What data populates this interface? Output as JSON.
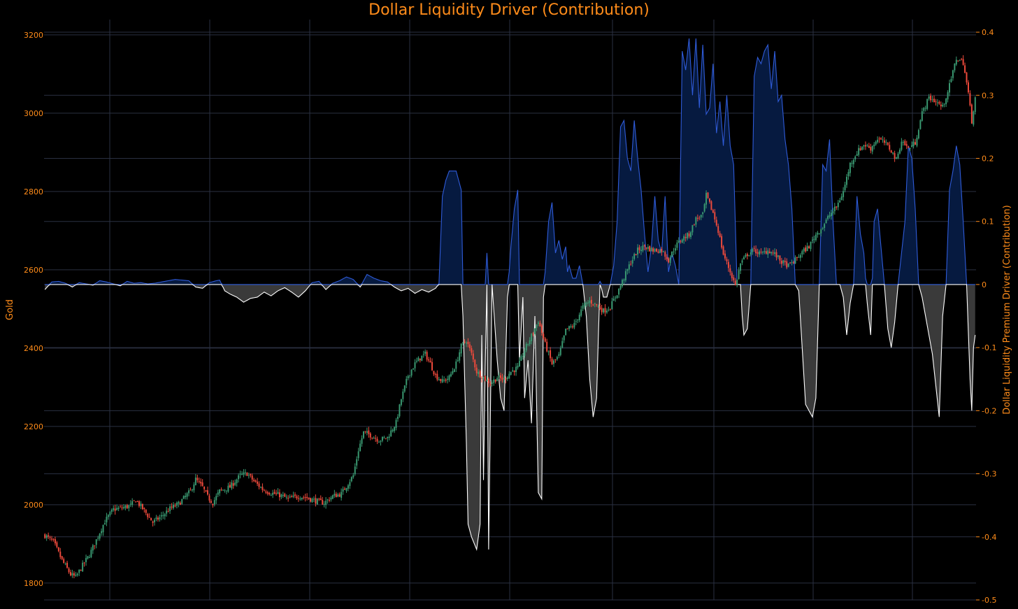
{
  "chart_data": {
    "type": "candlestick+area",
    "title": "Dollar Liquidity Driver (Contribution)",
    "y_left": {
      "label": "Gold",
      "range": [
        1757,
        3239
      ],
      "ticks": [
        1800,
        2000,
        2200,
        2400,
        2600,
        2800,
        3000,
        3200
      ]
    },
    "y_right": {
      "label": "Dollar Liquidity Premium Driver (Contribution)",
      "range": [
        -0.5,
        0.42
      ],
      "ticks": [
        -0.5,
        -0.4,
        -0.3,
        -0.2,
        -0.1,
        0,
        0.1,
        0.2,
        0.3,
        0.4
      ],
      "tick_labels": [
        "-0.5",
        "-0.4",
        "-0.3",
        "-0.2",
        "-0.1",
        "0",
        "0.1",
        "0.2",
        "0.3",
        "0.4"
      ]
    },
    "x_points": 330,
    "gold_close": [
      [
        0,
        1922
      ],
      [
        5,
        1905
      ],
      [
        10,
        1858
      ],
      [
        15,
        1822
      ],
      [
        18,
        1815
      ],
      [
        22,
        1845
      ],
      [
        26,
        1872
      ],
      [
        30,
        1910
      ],
      [
        35,
        1958
      ],
      [
        40,
        1988
      ],
      [
        45,
        1992
      ],
      [
        50,
        1998
      ],
      [
        53,
        2012
      ],
      [
        58,
        1985
      ],
      [
        63,
        1955
      ],
      [
        68,
        1970
      ],
      [
        73,
        1990
      ],
      [
        78,
        2002
      ],
      [
        85,
        2035
      ],
      [
        88,
        2065
      ],
      [
        92,
        2045
      ],
      [
        95,
        2020
      ],
      [
        98,
        2005
      ],
      [
        102,
        2035
      ],
      [
        108,
        2045
      ],
      [
        114,
        2075
      ],
      [
        118,
        2080
      ],
      [
        122,
        2060
      ],
      [
        127,
        2040
      ],
      [
        132,
        2030
      ],
      [
        137,
        2025
      ],
      [
        142,
        2015
      ],
      [
        148,
        2022
      ],
      [
        153,
        2018
      ],
      [
        158,
        2010
      ],
      [
        163,
        2005
      ],
      [
        168,
        2022
      ],
      [
        173,
        2028
      ],
      [
        176,
        2048
      ],
      [
        180,
        2075
      ],
      [
        183,
        2140
      ],
      [
        186,
        2185
      ],
      [
        190,
        2178
      ],
      [
        195,
        2165
      ],
      [
        200,
        2172
      ],
      [
        205,
        2210
      ],
      [
        208,
        2270
      ],
      [
        212,
        2330
      ],
      [
        216,
        2360
      ],
      [
        219,
        2375
      ],
      [
        222,
        2385
      ],
      [
        225,
        2360
      ],
      [
        228,
        2330
      ],
      [
        232,
        2315
      ],
      [
        236,
        2325
      ],
      [
        240,
        2360
      ],
      [
        243,
        2405
      ],
      [
        246,
        2420
      ],
      [
        249,
        2385
      ],
      [
        252,
        2340
      ],
      [
        256,
        2325
      ],
      [
        260,
        2310
      ],
      [
        264,
        2325
      ],
      [
        268,
        2320
      ],
      [
        272,
        2340
      ],
      [
        276,
        2350
      ],
      [
        280,
        2395
      ],
      [
        285,
        2440
      ],
      [
        288,
        2470
      ],
      [
        292,
        2410
      ],
      [
        296,
        2360
      ],
      [
        300,
        2380
      ],
      [
        304,
        2445
      ],
      [
        309,
        2460
      ],
      [
        314,
        2505
      ],
      [
        318,
        2520
      ],
      [
        322,
        2510
      ],
      [
        326,
        2495
      ],
      [
        330,
        2505
      ],
      [
        334,
        2540
      ],
      [
        338,
        2580
      ],
      [
        342,
        2620
      ],
      [
        346,
        2650
      ],
      [
        350,
        2660
      ],
      [
        355,
        2650
      ],
      [
        360,
        2650
      ],
      [
        364,
        2625
      ],
      [
        368,
        2660
      ],
      [
        372,
        2680
      ],
      [
        376,
        2690
      ],
      [
        380,
        2730
      ],
      [
        384,
        2740
      ],
      [
        386,
        2790
      ],
      [
        390,
        2745
      ],
      [
        393,
        2700
      ],
      [
        396,
        2640
      ],
      [
        400,
        2595
      ],
      [
        403,
        2560
      ],
      [
        406,
        2615
      ],
      [
        410,
        2640
      ],
      [
        414,
        2650
      ],
      [
        418,
        2640
      ],
      [
        422,
        2650
      ],
      [
        426,
        2640
      ],
      [
        430,
        2620
      ],
      [
        434,
        2610
      ],
      [
        438,
        2625
      ],
      [
        442,
        2645
      ],
      [
        446,
        2660
      ],
      [
        450,
        2690
      ],
      [
        454,
        2710
      ],
      [
        458,
        2740
      ],
      [
        462,
        2760
      ],
      [
        466,
        2800
      ],
      [
        470,
        2870
      ],
      [
        474,
        2900
      ],
      [
        478,
        2920
      ],
      [
        482,
        2910
      ],
      [
        486,
        2935
      ],
      [
        490,
        2925
      ],
      [
        494,
        2905
      ],
      [
        497,
        2880
      ],
      [
        500,
        2930
      ],
      [
        504,
        2910
      ],
      [
        508,
        2925
      ],
      [
        512,
        3000
      ],
      [
        516,
        3040
      ],
      [
        520,
        3030
      ],
      [
        524,
        3015
      ],
      [
        528,
        3070
      ],
      [
        532,
        3140
      ],
      [
        536,
        3130
      ],
      [
        539,
        3050
      ],
      [
        541,
        2980
      ],
      [
        543,
        3040
      ]
    ],
    "liquidity_contribution": [
      [
        0,
        -0.008
      ],
      [
        4,
        0.004
      ],
      [
        8,
        0.005
      ],
      [
        12,
        0.002
      ],
      [
        16,
        -0.004
      ],
      [
        20,
        0.003
      ],
      [
        24,
        0.001
      ],
      [
        28,
        -0.001
      ],
      [
        32,
        0.006
      ],
      [
        36,
        0.004
      ],
      [
        40,
        0.001
      ],
      [
        44,
        -0.002
      ],
      [
        48,
        0.005
      ],
      [
        52,
        0.002
      ],
      [
        56,
        0.003
      ],
      [
        60,
        0.001
      ],
      [
        64,
        0.002
      ],
      [
        68,
        0.004
      ],
      [
        72,
        0.006
      ],
      [
        76,
        0.008
      ],
      [
        80,
        0.007
      ],
      [
        84,
        0.006
      ],
      [
        88,
        -0.004
      ],
      [
        92,
        -0.006
      ],
      [
        96,
        0.003
      ],
      [
        100,
        0.006
      ],
      [
        102,
        0.007
      ],
      [
        105,
        -0.01
      ],
      [
        108,
        -0.015
      ],
      [
        112,
        -0.02
      ],
      [
        116,
        -0.028
      ],
      [
        120,
        -0.022
      ],
      [
        124,
        -0.02
      ],
      [
        128,
        -0.012
      ],
      [
        132,
        -0.018
      ],
      [
        136,
        -0.01
      ],
      [
        140,
        -0.005
      ],
      [
        144,
        -0.012
      ],
      [
        148,
        -0.02
      ],
      [
        152,
        -0.01
      ],
      [
        156,
        0.003
      ],
      [
        160,
        0.005
      ],
      [
        164,
        -0.008
      ],
      [
        168,
        0.002
      ],
      [
        172,
        0.006
      ],
      [
        176,
        0.012
      ],
      [
        180,
        0.008
      ],
      [
        184,
        -0.004
      ],
      [
        188,
        0.016
      ],
      [
        192,
        0.01
      ],
      [
        196,
        0.006
      ],
      [
        200,
        0.004
      ],
      [
        204,
        -0.004
      ],
      [
        208,
        -0.01
      ],
      [
        212,
        -0.006
      ],
      [
        216,
        -0.014
      ],
      [
        220,
        -0.008
      ],
      [
        224,
        -0.012
      ],
      [
        228,
        -0.006
      ],
      [
        230,
        0.001
      ],
      [
        232,
        0.14
      ],
      [
        234,
        0.165
      ],
      [
        236,
        0.18
      ],
      [
        240,
        0.18
      ],
      [
        243,
        0.15
      ],
      [
        244,
        -0.05
      ],
      [
        246,
        -0.25
      ],
      [
        247,
        -0.38
      ],
      [
        249,
        -0.4
      ],
      [
        252,
        -0.42
      ],
      [
        254,
        -0.38
      ],
      [
        255,
        -0.08
      ],
      [
        256,
        -0.31
      ],
      [
        258,
        0.05
      ],
      [
        259,
        -0.42
      ],
      [
        261,
        0.0
      ],
      [
        262,
        -0.04
      ],
      [
        264,
        -0.12
      ],
      [
        266,
        -0.18
      ],
      [
        268,
        -0.2
      ],
      [
        270,
        -0.02
      ],
      [
        272,
        0.06
      ],
      [
        274,
        0.12
      ],
      [
        276,
        0.15
      ],
      [
        277,
        -0.12
      ],
      [
        279,
        -0.02
      ],
      [
        280,
        -0.18
      ],
      [
        282,
        -0.12
      ],
      [
        284,
        -0.22
      ],
      [
        286,
        -0.05
      ],
      [
        288,
        -0.33
      ],
      [
        290,
        -0.34
      ],
      [
        291,
        -0.02
      ],
      [
        292,
        0.02
      ],
      [
        294,
        0.1
      ],
      [
        296,
        0.13
      ],
      [
        298,
        0.05
      ],
      [
        300,
        0.07
      ],
      [
        302,
        0.04
      ],
      [
        304,
        0.06
      ],
      [
        305,
        0.02
      ],
      [
        306,
        0.03
      ],
      [
        308,
        0.01
      ],
      [
        310,
        0.01
      ],
      [
        312,
        0.03
      ],
      [
        314,
        0.0
      ],
      [
        316,
        -0.05
      ],
      [
        318,
        -0.15
      ],
      [
        320,
        -0.21
      ],
      [
        322,
        -0.18
      ],
      [
        324,
        0.005
      ],
      [
        326,
        -0.02
      ],
      [
        328,
        -0.02
      ],
      [
        330,
        0.0
      ],
      [
        332,
        0.03
      ],
      [
        334,
        0.1
      ],
      [
        336,
        0.25
      ],
      [
        338,
        0.26
      ],
      [
        340,
        0.2
      ],
      [
        342,
        0.18
      ],
      [
        344,
        0.26
      ],
      [
        346,
        0.2
      ],
      [
        348,
        0.15
      ],
      [
        350,
        0.08
      ],
      [
        352,
        0.02
      ],
      [
        354,
        0.06
      ],
      [
        356,
        0.14
      ],
      [
        358,
        0.07
      ],
      [
        360,
        0.05
      ],
      [
        362,
        0.14
      ],
      [
        364,
        0.02
      ],
      [
        366,
        0.05
      ],
      [
        368,
        0.03
      ],
      [
        370,
        0.0
      ],
      [
        372,
        0.37
      ],
      [
        374,
        0.34
      ],
      [
        376,
        0.39
      ],
      [
        378,
        0.3
      ],
      [
        380,
        0.39
      ],
      [
        382,
        0.28
      ],
      [
        384,
        0.38
      ],
      [
        386,
        0.27
      ],
      [
        388,
        0.28
      ],
      [
        390,
        0.35
      ],
      [
        392,
        0.24
      ],
      [
        394,
        0.29
      ],
      [
        396,
        0.22
      ],
      [
        398,
        0.3
      ],
      [
        400,
        0.22
      ],
      [
        402,
        0.19
      ],
      [
        404,
        0.0
      ],
      [
        406,
        0.0
      ],
      [
        407,
        -0.05
      ],
      [
        408,
        -0.08
      ],
      [
        410,
        -0.07
      ],
      [
        412,
        0.0
      ],
      [
        414,
        0.33
      ],
      [
        416,
        0.36
      ],
      [
        418,
        0.35
      ],
      [
        420,
        0.37
      ],
      [
        422,
        0.38
      ],
      [
        424,
        0.31
      ],
      [
        426,
        0.37
      ],
      [
        428,
        0.29
      ],
      [
        430,
        0.3
      ],
      [
        432,
        0.23
      ],
      [
        434,
        0.19
      ],
      [
        436,
        0.12
      ],
      [
        438,
        0.0
      ],
      [
        440,
        -0.01
      ],
      [
        442,
        -0.1
      ],
      [
        444,
        -0.19
      ],
      [
        446,
        -0.2
      ],
      [
        448,
        -0.21
      ],
      [
        450,
        -0.18
      ],
      [
        452,
        0.0
      ],
      [
        454,
        0.19
      ],
      [
        456,
        0.18
      ],
      [
        458,
        0.23
      ],
      [
        460,
        0.1
      ],
      [
        462,
        0.0
      ],
      [
        464,
        0.0
      ],
      [
        466,
        -0.02
      ],
      [
        468,
        -0.08
      ],
      [
        470,
        -0.03
      ],
      [
        472,
        0.0
      ],
      [
        474,
        0.14
      ],
      [
        476,
        0.08
      ],
      [
        478,
        0.05
      ],
      [
        480,
        -0.03
      ],
      [
        482,
        -0.08
      ],
      [
        484,
        0.1
      ],
      [
        486,
        0.12
      ],
      [
        488,
        0.06
      ],
      [
        490,
        0.0
      ],
      [
        492,
        -0.07
      ],
      [
        494,
        -0.1
      ],
      [
        496,
        -0.06
      ],
      [
        498,
        0.0
      ],
      [
        500,
        0.05
      ],
      [
        502,
        0.1
      ],
      [
        504,
        0.22
      ],
      [
        506,
        0.2
      ],
      [
        508,
        0.12
      ],
      [
        510,
        0.0
      ],
      [
        512,
        -0.02
      ],
      [
        514,
        -0.05
      ],
      [
        516,
        -0.08
      ],
      [
        518,
        -0.11
      ],
      [
        520,
        -0.16
      ],
      [
        522,
        -0.21
      ],
      [
        524,
        -0.05
      ],
      [
        526,
        0.0
      ],
      [
        528,
        0.15
      ],
      [
        530,
        0.18
      ],
      [
        532,
        0.22
      ],
      [
        534,
        0.19
      ],
      [
        536,
        0.1
      ],
      [
        538,
        0.0
      ],
      [
        540,
        -0.15
      ],
      [
        541,
        -0.2
      ],
      [
        542,
        -0.1
      ],
      [
        543,
        -0.08
      ]
    ]
  },
  "colors": {
    "background": "#000000",
    "grid": "#2a3042",
    "axis_text": "#ff8c1a",
    "candle_up": "#3a9a72",
    "candle_down": "#ef4a3c",
    "area_positive_line": "#2f5bd8",
    "area_positive_fill": "#061a40",
    "area_negative_line": "#ffffff",
    "area_negative_fill": "#3a3a3a"
  }
}
